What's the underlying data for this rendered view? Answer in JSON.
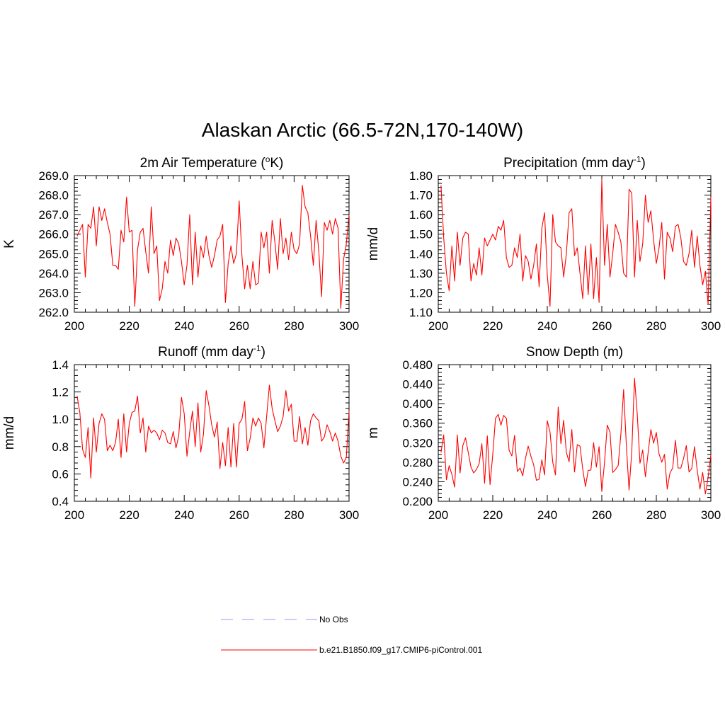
{
  "figure": {
    "title": "Alaskan Arctic (66.5-72N,170-140W)"
  },
  "legend": {
    "items": [
      {
        "label": "No Obs",
        "color": "#9999ff",
        "style": "dashed"
      },
      {
        "label": "b.e21.B1850.f09_g17.CMIP6-piControl.001",
        "color": "#ff0000",
        "style": "solid"
      }
    ]
  },
  "chart_data": [
    {
      "type": "line",
      "title": "2m Air Temperature (°K)",
      "title_parts": {
        "before": "2m Air Temperature (",
        "sup": "o",
        "after": "K)"
      },
      "xlabel": "",
      "ylabel": "K",
      "xlim": [
        200,
        300
      ],
      "ylim": [
        262.0,
        269.0
      ],
      "xticks": [
        200,
        220,
        240,
        260,
        280,
        300
      ],
      "yticks": [
        "262.0",
        "263.0",
        "264.0",
        "265.0",
        "266.0",
        "267.0",
        "268.0",
        "269.0"
      ],
      "grid": false,
      "x_start": 201,
      "series": [
        {
          "color": "#ff0000",
          "values": [
            265.9,
            266.2,
            266.5,
            263.8,
            266.5,
            266.3,
            267.4,
            265.4,
            267.4,
            266.7,
            267.3,
            266.6,
            266.0,
            264.4,
            264.4,
            264.2,
            266.2,
            265.6,
            267.9,
            266.1,
            266.2,
            262.3,
            265.2,
            266.1,
            266.3,
            265.1,
            264.0,
            267.4,
            265.0,
            265.4,
            262.6,
            263.2,
            264.6,
            264.0,
            265.7,
            264.9,
            265.8,
            265.5,
            264.6,
            263.4,
            264.4,
            267.0,
            263.4,
            266.1,
            263.8,
            265.4,
            264.8,
            265.9,
            264.9,
            264.3,
            264.9,
            265.7,
            265.9,
            266.5,
            262.5,
            264.5,
            265.4,
            264.5,
            265.0,
            267.7,
            264.9,
            263.2,
            264.4,
            263.2,
            264.6,
            263.4,
            263.5,
            266.1,
            265.3,
            266.1,
            264.0,
            266.7,
            265.6,
            264.2,
            266.8,
            265.0,
            265.8,
            264.7,
            266.1,
            265.2,
            265.0,
            265.5,
            268.5,
            267.4,
            267.1,
            265.9,
            264.4,
            266.7,
            265.1,
            262.8,
            266.6,
            266.2,
            266.7,
            266.0,
            266.8,
            266.3,
            262.2,
            264.7,
            265.5,
            267.0
          ]
        }
      ]
    },
    {
      "type": "line",
      "title": "Precipitation (mm day-1)",
      "title_parts": {
        "before": "Precipitation (mm day",
        "sup": "-1",
        "after": ")"
      },
      "xlabel": "",
      "ylabel": "mm/d",
      "xlim": [
        200,
        300
      ],
      "ylim": [
        1.1,
        1.8
      ],
      "xticks": [
        200,
        220,
        240,
        260,
        280,
        300
      ],
      "yticks": [
        "1.10",
        "1.20",
        "1.30",
        "1.40",
        "1.50",
        "1.60",
        "1.70",
        "1.80"
      ],
      "grid": false,
      "x_start": 201,
      "series": [
        {
          "color": "#ff0000",
          "values": [
            1.75,
            1.48,
            1.3,
            1.21,
            1.44,
            1.26,
            1.51,
            1.34,
            1.48,
            1.51,
            1.5,
            1.26,
            1.35,
            1.29,
            1.43,
            1.29,
            1.48,
            1.44,
            1.47,
            1.5,
            1.47,
            1.54,
            1.52,
            1.57,
            1.38,
            1.33,
            1.34,
            1.43,
            1.38,
            1.5,
            1.26,
            1.39,
            1.36,
            1.27,
            1.34,
            1.45,
            1.23,
            1.53,
            1.61,
            1.29,
            1.13,
            1.6,
            1.46,
            1.44,
            1.43,
            1.28,
            1.4,
            1.61,
            1.63,
            1.39,
            1.43,
            1.3,
            1.17,
            1.44,
            1.19,
            1.45,
            1.17,
            1.38,
            1.15,
            1.78,
            1.34,
            1.55,
            1.28,
            1.4,
            1.55,
            1.51,
            1.46,
            1.3,
            1.28,
            1.73,
            1.71,
            1.28,
            1.57,
            1.36,
            1.45,
            1.7,
            1.56,
            1.62,
            1.47,
            1.35,
            1.43,
            1.56,
            1.27,
            1.51,
            1.48,
            1.41,
            1.54,
            1.55,
            1.48,
            1.36,
            1.34,
            1.4,
            1.52,
            1.33,
            1.49,
            1.34,
            1.24,
            1.31,
            1.14,
            1.69
          ]
        }
      ]
    },
    {
      "type": "line",
      "title": "Runoff (mm day-1)",
      "title_parts": {
        "before": "Runoff (mm day",
        "sup": "-1",
        "after": ")"
      },
      "xlabel": "",
      "ylabel": "mm/d",
      "xlim": [
        200,
        300
      ],
      "ylim": [
        0.4,
        1.4
      ],
      "xticks": [
        200,
        220,
        240,
        260,
        280,
        300
      ],
      "yticks": [
        "0.4",
        "0.6",
        "0.8",
        "1.0",
        "1.2",
        "1.4"
      ],
      "grid": false,
      "x_start": 201,
      "series": [
        {
          "color": "#ff0000",
          "values": [
            1.17,
            1.05,
            0.78,
            0.72,
            0.94,
            0.57,
            1.01,
            0.76,
            0.97,
            1.04,
            1.0,
            0.77,
            0.81,
            0.77,
            0.83,
            1.0,
            0.72,
            1.04,
            0.76,
            0.97,
            1.05,
            1.06,
            1.17,
            0.9,
            1.01,
            0.76,
            0.95,
            0.9,
            0.92,
            0.9,
            0.85,
            0.92,
            0.9,
            0.83,
            0.82,
            0.91,
            0.79,
            0.88,
            1.16,
            1.04,
            0.73,
            0.91,
            1.06,
            0.8,
            1.12,
            0.76,
            0.89,
            1.21,
            1.1,
            0.96,
            0.87,
            0.98,
            0.64,
            0.83,
            0.66,
            0.94,
            0.65,
            0.97,
            0.65,
            0.97,
            1.0,
            1.13,
            0.77,
            0.86,
            1.01,
            0.95,
            1.01,
            0.97,
            0.79,
            1.02,
            1.25,
            1.08,
            0.99,
            0.91,
            0.95,
            1.02,
            1.21,
            1.06,
            1.11,
            0.84,
            0.84,
            1.02,
            0.82,
            0.94,
            0.81,
            0.99,
            1.04,
            1.01,
            0.99,
            0.84,
            0.87,
            0.96,
            0.91,
            0.84,
            0.9,
            0.84,
            0.73,
            0.68,
            0.72,
            1.06
          ]
        }
      ]
    },
    {
      "type": "line",
      "title": "Snow Depth (m)",
      "title_parts": {
        "before": "Snow Depth (m)",
        "sup": "",
        "after": ""
      },
      "xlabel": "",
      "ylabel": "m",
      "xlim": [
        200,
        300
      ],
      "ylim": [
        0.2,
        0.48
      ],
      "xticks": [
        200,
        220,
        240,
        260,
        280,
        300
      ],
      "yticks": [
        "0.200",
        "0.240",
        "0.280",
        "0.320",
        "0.360",
        "0.400",
        "0.440",
        "0.480"
      ],
      "grid": false,
      "x_start": 201,
      "series": [
        {
          "color": "#ff0000",
          "values": [
            0.3,
            0.336,
            0.244,
            0.273,
            0.255,
            0.229,
            0.336,
            0.258,
            0.314,
            0.33,
            0.3,
            0.27,
            0.258,
            0.265,
            0.277,
            0.318,
            0.237,
            0.334,
            0.234,
            0.296,
            0.37,
            0.378,
            0.356,
            0.376,
            0.37,
            0.304,
            0.293,
            0.335,
            0.261,
            0.268,
            0.252,
            0.288,
            0.313,
            0.292,
            0.275,
            0.243,
            0.245,
            0.285,
            0.254,
            0.365,
            0.342,
            0.28,
            0.254,
            0.393,
            0.318,
            0.366,
            0.3,
            0.281,
            0.347,
            0.26,
            0.316,
            0.313,
            0.266,
            0.23,
            0.263,
            0.264,
            0.32,
            0.27,
            0.312,
            0.22,
            0.28,
            0.356,
            0.342,
            0.259,
            0.265,
            0.273,
            0.338,
            0.429,
            0.315,
            0.223,
            0.303,
            0.452,
            0.379,
            0.278,
            0.305,
            0.25,
            0.3,
            0.347,
            0.319,
            0.341,
            0.297,
            0.28,
            0.296,
            0.225,
            0.258,
            0.268,
            0.325,
            0.268,
            0.268,
            0.288,
            0.314,
            0.26,
            0.267,
            0.312,
            0.264,
            0.225,
            0.259,
            0.215,
            0.249,
            0.295
          ]
        }
      ]
    }
  ]
}
